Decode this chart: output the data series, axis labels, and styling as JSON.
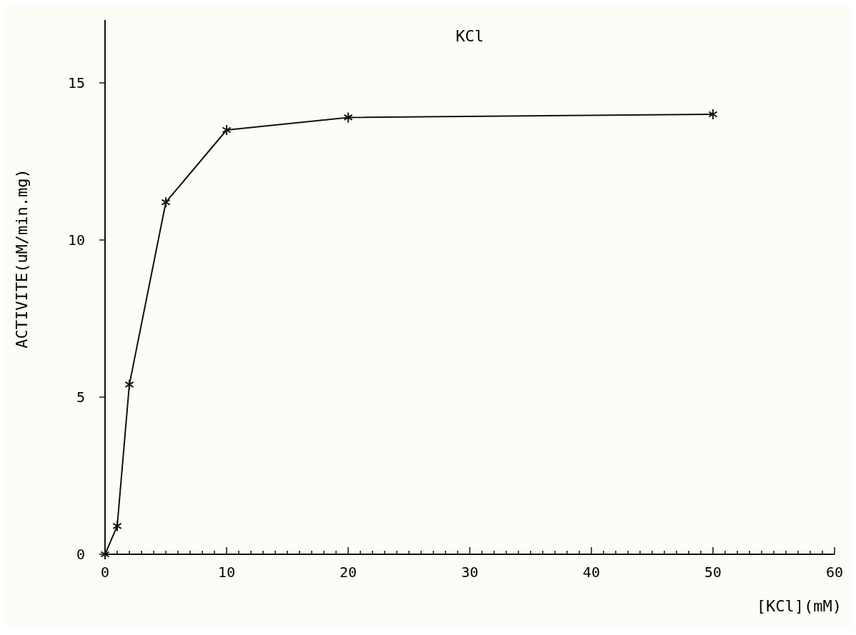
{
  "chart_data": {
    "type": "line",
    "title": "KCl",
    "xlabel": "[KCl](mM)",
    "ylabel": "ACTIVITE(uM/min.mg)",
    "x": [
      0,
      1,
      2,
      5,
      10,
      20,
      50
    ],
    "series": [
      {
        "color": "#111111",
        "values": [
          0,
          0.9,
          5.4,
          11.2,
          13.5,
          13.9,
          14.0
        ]
      }
    ],
    "xlim": [
      0,
      60
    ],
    "ylim": [
      0,
      17
    ],
    "xticks": [
      0,
      {
        "value": 1,
        "label": null
      },
      {
        "value": 2,
        "label": null
      },
      {
        "value": 3,
        "label": null
      },
      {
        "value": 4,
        "label": null
      },
      {
        "value": 5,
        "label": null
      },
      {
        "value": 6,
        "label": null
      },
      {
        "value": 7,
        "label": null
      },
      {
        "value": 8,
        "label": null
      },
      {
        "value": 9,
        "label": null
      },
      10,
      {
        "value": 11,
        "label": null
      },
      {
        "value": 12,
        "label": null
      },
      {
        "value": 13,
        "label": null
      },
      {
        "value": 14,
        "label": null
      },
      {
        "value": 15,
        "label": null
      },
      {
        "value": 16,
        "label": null
      },
      {
        "value": 17,
        "label": null
      },
      {
        "value": 18,
        "label": null
      },
      {
        "value": 19,
        "label": null
      },
      20,
      {
        "value": 21,
        "label": null
      },
      {
        "value": 22,
        "label": null
      },
      {
        "value": 23,
        "label": null
      },
      {
        "value": 24,
        "label": null
      },
      {
        "value": 25,
        "label": null
      },
      {
        "value": 26,
        "label": null
      },
      {
        "value": 27,
        "label": null
      },
      {
        "value": 28,
        "label": null
      },
      {
        "value": 29,
        "label": null
      },
      30,
      {
        "value": 31,
        "label": null
      },
      {
        "value": 32,
        "label": null
      },
      {
        "value": 33,
        "label": null
      },
      {
        "value": 34,
        "label": null
      },
      {
        "value": 35,
        "label": null
      },
      {
        "value": 36,
        "label": null
      },
      {
        "value": 37,
        "label": null
      },
      {
        "value": 38,
        "label": null
      },
      {
        "value": 39,
        "label": null
      },
      40,
      {
        "value": 41,
        "label": null
      },
      {
        "value": 42,
        "label": null
      },
      {
        "value": 43,
        "label": null
      },
      {
        "value": 44,
        "label": null
      },
      {
        "value": 45,
        "label": null
      },
      {
        "value": 46,
        "label": null
      },
      {
        "value": 47,
        "label": null
      },
      {
        "value": 48,
        "label": null
      },
      {
        "value": 49,
        "label": null
      },
      50,
      {
        "value": 51,
        "label": null
      },
      {
        "value": 52,
        "label": null
      },
      {
        "value": 53,
        "label": null
      },
      {
        "value": 54,
        "label": null
      },
      {
        "value": 55,
        "label": null
      },
      {
        "value": 56,
        "label": null
      },
      {
        "value": 57,
        "label": null
      },
      {
        "value": 58,
        "label": null
      },
      {
        "value": 59,
        "label": null
      },
      60
    ],
    "yticks": [
      0,
      5,
      10,
      15
    ],
    "marker": "cross",
    "line_style": "solid",
    "grid": false
  }
}
